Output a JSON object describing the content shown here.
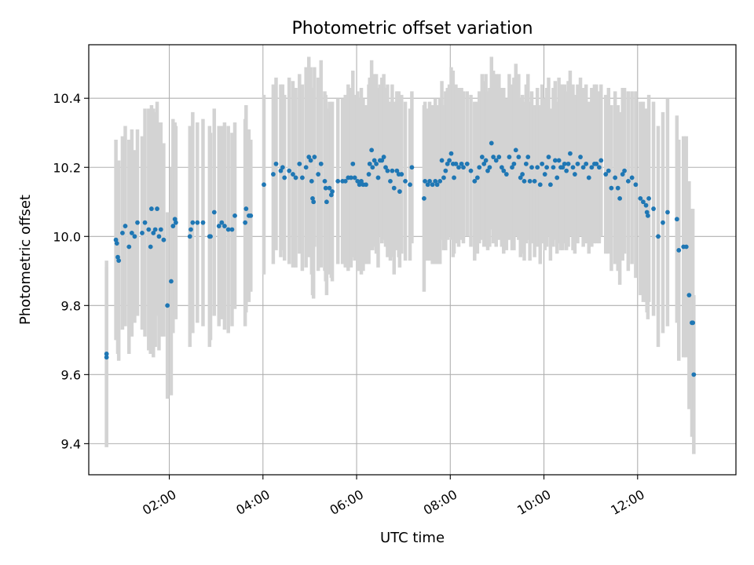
{
  "chart_data": {
    "type": "scatter",
    "title": "Photometric offset variation",
    "xlabel": "UTC time",
    "ylabel": "Photometric offset",
    "x_unit": "hours",
    "xlim": [
      0.28,
      14.1
    ],
    "ylim": [
      9.31,
      10.555
    ],
    "x_ticks": [
      {
        "value": 2,
        "label": "02:00"
      },
      {
        "value": 4,
        "label": "04:00"
      },
      {
        "value": 6,
        "label": "06:00"
      },
      {
        "value": 8,
        "label": "08:00"
      },
      {
        "value": 10,
        "label": "10:00"
      },
      {
        "value": 12,
        "label": "12:00"
      }
    ],
    "y_ticks": [
      {
        "value": 9.4,
        "label": "9.4"
      },
      {
        "value": 9.6,
        "label": "9.6"
      },
      {
        "value": 9.8,
        "label": "9.8"
      },
      {
        "value": 10.0,
        "label": "10.0"
      },
      {
        "value": 10.2,
        "label": "10.2"
      },
      {
        "value": 10.4,
        "label": "10.4"
      }
    ],
    "grid": true,
    "legend": "none",
    "colors": {
      "points": "#1f77b4",
      "errorbars": "#d3d3d3",
      "grid": "#b0b0b0"
    },
    "points": [
      [
        0.66,
        9.66,
        0.27
      ],
      [
        0.66,
        9.65,
        0.26
      ],
      [
        0.86,
        9.99,
        0.29
      ],
      [
        0.88,
        9.98,
        0.24
      ],
      [
        0.9,
        9.94,
        0.28
      ],
      [
        0.92,
        9.93,
        0.29
      ],
      [
        1.0,
        10.01,
        0.28
      ],
      [
        1.06,
        10.03,
        0.29
      ],
      [
        1.14,
        9.97,
        0.31
      ],
      [
        1.2,
        10.01,
        0.3
      ],
      [
        1.26,
        10.0,
        0.25
      ],
      [
        1.32,
        10.04,
        0.27
      ],
      [
        1.42,
        10.01,
        0.28
      ],
      [
        1.48,
        10.04,
        0.33
      ],
      [
        1.56,
        10.02,
        0.35
      ],
      [
        1.6,
        9.97,
        0.31
      ],
      [
        1.62,
        10.08,
        0.3
      ],
      [
        1.66,
        10.01,
        0.36
      ],
      [
        1.7,
        10.02,
        0.34
      ],
      [
        1.74,
        10.08,
        0.31
      ],
      [
        1.78,
        10.0,
        0.33
      ],
      [
        1.82,
        10.02,
        0.31
      ],
      [
        1.88,
        9.99,
        0.28
      ],
      [
        1.96,
        9.8,
        0.27
      ],
      [
        2.04,
        9.87,
        0.33
      ],
      [
        2.08,
        10.03,
        0.31
      ],
      [
        2.12,
        10.05,
        0.28
      ],
      [
        2.14,
        10.04,
        0.28
      ],
      [
        2.44,
        10.0,
        0.32
      ],
      [
        2.46,
        10.02,
        0.3
      ],
      [
        2.5,
        10.04,
        0.32
      ],
      [
        2.6,
        10.04,
        0.29
      ],
      [
        2.72,
        10.04,
        0.3
      ],
      [
        2.86,
        10.0,
        0.32
      ],
      [
        2.88,
        10.0,
        0.3
      ],
      [
        2.96,
        10.07,
        0.3
      ],
      [
        3.06,
        10.03,
        0.29
      ],
      [
        3.12,
        10.04,
        0.28
      ],
      [
        3.18,
        10.03,
        0.3
      ],
      [
        3.26,
        10.02,
        0.3
      ],
      [
        3.34,
        10.02,
        0.28
      ],
      [
        3.4,
        10.06,
        0.27
      ],
      [
        3.62,
        10.04,
        0.3
      ],
      [
        3.64,
        10.08,
        0.3
      ],
      [
        3.7,
        10.06,
        0.25
      ],
      [
        3.74,
        10.06,
        0.22
      ],
      [
        4.02,
        10.15,
        0.26
      ],
      [
        4.22,
        10.18,
        0.26
      ],
      [
        4.28,
        10.21,
        0.25
      ],
      [
        4.38,
        10.19,
        0.25
      ],
      [
        4.42,
        10.2,
        0.24
      ],
      [
        4.46,
        10.17,
        0.24
      ],
      [
        4.56,
        10.19,
        0.27
      ],
      [
        4.64,
        10.18,
        0.27
      ],
      [
        4.7,
        10.17,
        0.26
      ],
      [
        4.78,
        10.21,
        0.26
      ],
      [
        4.84,
        10.17,
        0.27
      ],
      [
        4.92,
        10.2,
        0.29
      ],
      [
        4.98,
        10.23,
        0.29
      ],
      [
        5.02,
        10.22,
        0.27
      ],
      [
        5.04,
        10.16,
        0.27
      ],
      [
        5.06,
        10.11,
        0.28
      ],
      [
        5.08,
        10.1,
        0.28
      ],
      [
        5.1,
        10.23,
        0.26
      ],
      [
        5.18,
        10.18,
        0.28
      ],
      [
        5.24,
        10.21,
        0.3
      ],
      [
        5.32,
        10.16,
        0.26
      ],
      [
        5.34,
        10.14,
        0.27
      ],
      [
        5.36,
        10.1,
        0.27
      ],
      [
        5.42,
        10.14,
        0.25
      ],
      [
        5.46,
        10.12,
        0.24
      ],
      [
        5.48,
        10.13,
        0.26
      ],
      [
        5.6,
        10.16,
        0.24
      ],
      [
        5.7,
        10.16,
        0.24
      ],
      [
        5.76,
        10.16,
        0.25
      ],
      [
        5.82,
        10.17,
        0.27
      ],
      [
        5.88,
        10.17,
        0.26
      ],
      [
        5.92,
        10.21,
        0.27
      ],
      [
        5.96,
        10.17,
        0.24
      ],
      [
        6.02,
        10.16,
        0.26
      ],
      [
        6.06,
        10.15,
        0.25
      ],
      [
        6.1,
        10.16,
        0.27
      ],
      [
        6.14,
        10.15,
        0.25
      ],
      [
        6.2,
        10.15,
        0.23
      ],
      [
        6.26,
        10.18,
        0.26
      ],
      [
        6.28,
        10.21,
        0.25
      ],
      [
        6.32,
        10.25,
        0.26
      ],
      [
        6.34,
        10.2,
        0.24
      ],
      [
        6.38,
        10.22,
        0.25
      ],
      [
        6.42,
        10.21,
        0.26
      ],
      [
        6.46,
        10.17,
        0.26
      ],
      [
        6.5,
        10.22,
        0.22
      ],
      [
        6.54,
        10.22,
        0.24
      ],
      [
        6.58,
        10.23,
        0.24
      ],
      [
        6.62,
        10.2,
        0.23
      ],
      [
        6.66,
        10.19,
        0.25
      ],
      [
        6.72,
        10.16,
        0.23
      ],
      [
        6.76,
        10.19,
        0.25
      ],
      [
        6.8,
        10.14,
        0.25
      ],
      [
        6.86,
        10.19,
        0.23
      ],
      [
        6.9,
        10.18,
        0.24
      ],
      [
        6.92,
        10.13,
        0.22
      ],
      [
        6.96,
        10.18,
        0.23
      ],
      [
        7.04,
        10.16,
        0.23
      ],
      [
        7.14,
        10.15,
        0.22
      ],
      [
        7.18,
        10.2,
        0.22
      ],
      [
        7.44,
        10.11,
        0.27
      ],
      [
        7.46,
        10.16,
        0.23
      ],
      [
        7.52,
        10.15,
        0.22
      ],
      [
        7.56,
        10.16,
        0.23
      ],
      [
        7.62,
        10.15,
        0.23
      ],
      [
        7.68,
        10.16,
        0.24
      ],
      [
        7.72,
        10.15,
        0.23
      ],
      [
        7.78,
        10.16,
        0.24
      ],
      [
        7.82,
        10.22,
        0.23
      ],
      [
        7.86,
        10.17,
        0.21
      ],
      [
        7.9,
        10.19,
        0.23
      ],
      [
        7.94,
        10.21,
        0.22
      ],
      [
        7.98,
        10.22,
        0.22
      ],
      [
        8.02,
        10.24,
        0.25
      ],
      [
        8.06,
        10.21,
        0.27
      ],
      [
        8.08,
        10.17,
        0.22
      ],
      [
        8.12,
        10.21,
        0.23
      ],
      [
        8.18,
        10.2,
        0.23
      ],
      [
        8.24,
        10.21,
        0.22
      ],
      [
        8.28,
        10.2,
        0.22
      ],
      [
        8.36,
        10.21,
        0.21
      ],
      [
        8.44,
        10.19,
        0.22
      ],
      [
        8.52,
        10.16,
        0.23
      ],
      [
        8.58,
        10.17,
        0.22
      ],
      [
        8.62,
        10.2,
        0.22
      ],
      [
        8.68,
        10.23,
        0.24
      ],
      [
        8.72,
        10.21,
        0.24
      ],
      [
        8.76,
        10.22,
        0.25
      ],
      [
        8.8,
        10.19,
        0.23
      ],
      [
        8.84,
        10.2,
        0.23
      ],
      [
        8.88,
        10.27,
        0.25
      ],
      [
        8.92,
        10.23,
        0.25
      ],
      [
        8.98,
        10.22,
        0.25
      ],
      [
        9.04,
        10.23,
        0.24
      ],
      [
        9.1,
        10.2,
        0.23
      ],
      [
        9.14,
        10.19,
        0.24
      ],
      [
        9.2,
        10.18,
        0.22
      ],
      [
        9.26,
        10.23,
        0.24
      ],
      [
        9.32,
        10.2,
        0.24
      ],
      [
        9.36,
        10.21,
        0.25
      ],
      [
        9.4,
        10.25,
        0.25
      ],
      [
        9.46,
        10.23,
        0.24
      ],
      [
        9.5,
        10.17,
        0.23
      ],
      [
        9.54,
        10.18,
        0.23
      ],
      [
        9.58,
        10.16,
        0.23
      ],
      [
        9.62,
        10.21,
        0.23
      ],
      [
        9.66,
        10.23,
        0.24
      ],
      [
        9.7,
        10.16,
        0.23
      ],
      [
        9.74,
        10.2,
        0.22
      ],
      [
        9.8,
        10.16,
        0.22
      ],
      [
        9.86,
        10.2,
        0.23
      ],
      [
        9.92,
        10.15,
        0.23
      ],
      [
        9.96,
        10.21,
        0.23
      ],
      [
        10.02,
        10.18,
        0.22
      ],
      [
        10.06,
        10.2,
        0.23
      ],
      [
        10.1,
        10.23,
        0.23
      ],
      [
        10.14,
        10.15,
        0.22
      ],
      [
        10.2,
        10.2,
        0.23
      ],
      [
        10.24,
        10.22,
        0.23
      ],
      [
        10.28,
        10.17,
        0.22
      ],
      [
        10.32,
        10.22,
        0.24
      ],
      [
        10.36,
        10.2,
        0.24
      ],
      [
        10.4,
        10.2,
        0.24
      ],
      [
        10.44,
        10.21,
        0.23
      ],
      [
        10.48,
        10.19,
        0.23
      ],
      [
        10.52,
        10.21,
        0.24
      ],
      [
        10.56,
        10.24,
        0.24
      ],
      [
        10.62,
        10.2,
        0.24
      ],
      [
        10.66,
        10.18,
        0.23
      ],
      [
        10.72,
        10.21,
        0.23
      ],
      [
        10.78,
        10.23,
        0.23
      ],
      [
        10.84,
        10.2,
        0.23
      ],
      [
        10.9,
        10.21,
        0.23
      ],
      [
        10.96,
        10.17,
        0.22
      ],
      [
        11.02,
        10.2,
        0.23
      ],
      [
        11.08,
        10.21,
        0.23
      ],
      [
        11.12,
        10.21,
        0.23
      ],
      [
        11.18,
        10.2,
        0.22
      ],
      [
        11.22,
        10.22,
        0.22
      ],
      [
        11.32,
        10.18,
        0.23
      ],
      [
        11.38,
        10.19,
        0.24
      ],
      [
        11.44,
        10.14,
        0.24
      ],
      [
        11.52,
        10.17,
        0.25
      ],
      [
        11.58,
        10.14,
        0.24
      ],
      [
        11.62,
        10.11,
        0.25
      ],
      [
        11.68,
        10.18,
        0.25
      ],
      [
        11.72,
        10.19,
        0.24
      ],
      [
        11.8,
        10.16,
        0.26
      ],
      [
        11.88,
        10.17,
        0.25
      ],
      [
        11.96,
        10.15,
        0.27
      ],
      [
        12.06,
        10.11,
        0.28
      ],
      [
        12.12,
        10.1,
        0.29
      ],
      [
        12.18,
        10.09,
        0.28
      ],
      [
        12.2,
        10.07,
        0.29
      ],
      [
        12.22,
        10.06,
        0.3
      ],
      [
        12.24,
        10.11,
        0.3
      ],
      [
        12.34,
        10.08,
        0.31
      ],
      [
        12.44,
        10.0,
        0.32
      ],
      [
        12.54,
        10.04,
        0.32
      ],
      [
        12.64,
        10.07,
        0.33
      ],
      [
        12.84,
        10.05,
        0.3
      ],
      [
        12.88,
        9.96,
        0.32
      ],
      [
        12.98,
        9.97,
        0.32
      ],
      [
        13.04,
        9.97,
        0.32
      ],
      [
        13.1,
        9.83,
        0.33
      ],
      [
        13.16,
        9.75,
        0.33
      ],
      [
        13.18,
        9.75,
        0.33
      ],
      [
        13.2,
        9.6,
        0.23
      ]
    ]
  }
}
